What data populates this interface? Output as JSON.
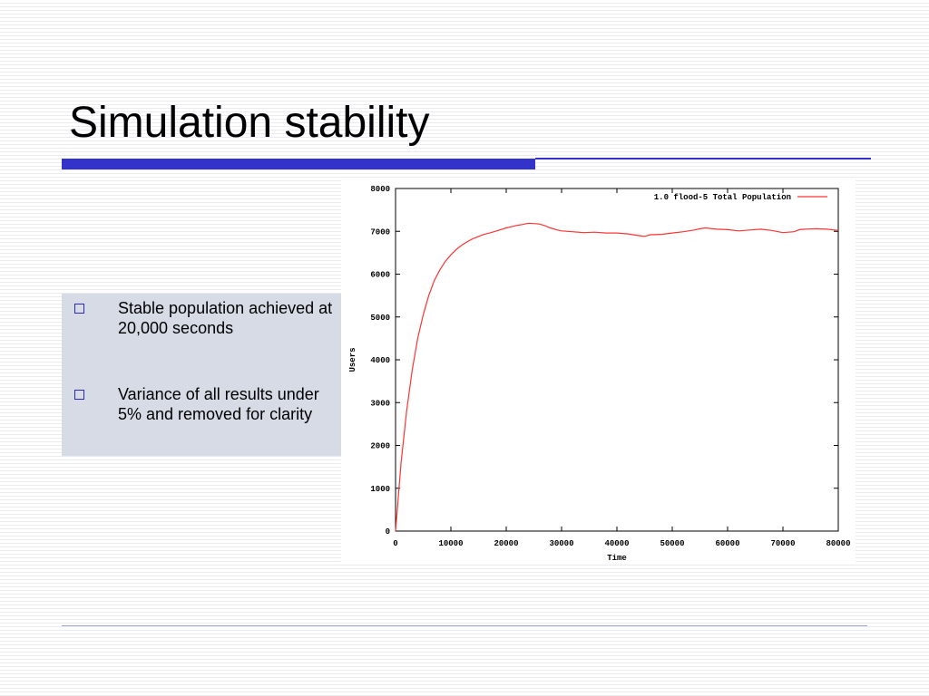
{
  "slide": {
    "title": "Simulation stability",
    "bullets": [
      "Stable population achieved at 20,000 seconds",
      "Variance of all results under 5% and removed for clarity"
    ]
  },
  "colors": {
    "accent": "#3333cc",
    "bullet_panel": "#d6dbe6",
    "series_line": "#ff3333"
  },
  "chart_data": {
    "type": "line",
    "xlabel": "Time",
    "ylabel": "Users",
    "xlim": [
      0,
      80000
    ],
    "ylim": [
      0,
      8000
    ],
    "x_ticks": [
      0,
      10000,
      20000,
      30000,
      40000,
      50000,
      60000,
      70000,
      80000
    ],
    "y_ticks": [
      0,
      1000,
      2000,
      3000,
      4000,
      5000,
      6000,
      7000,
      8000
    ],
    "grid": false,
    "legend_position": "top-right",
    "series": [
      {
        "name": "1.0 flood-5 Total Population",
        "x": [
          0,
          1000,
          2000,
          3000,
          4000,
          5000,
          6000,
          7000,
          8000,
          9000,
          10000,
          11000,
          12000,
          13000,
          14000,
          15000,
          16000,
          17000,
          18000,
          19000,
          20000,
          21000,
          22000,
          23000,
          24000,
          25000,
          26000,
          27000,
          28000,
          29000,
          30000,
          32000,
          34000,
          36000,
          38000,
          40000,
          42000,
          44000,
          45000,
          46000,
          48000,
          50000,
          52000,
          54000,
          55000,
          56000,
          58000,
          60000,
          62000,
          64000,
          66000,
          68000,
          70000,
          72000,
          73000,
          74000,
          76000,
          78000,
          80000
        ],
        "values": [
          0,
          1600,
          2800,
          3750,
          4500,
          5050,
          5500,
          5850,
          6100,
          6300,
          6450,
          6580,
          6680,
          6760,
          6830,
          6880,
          6930,
          6960,
          7000,
          7040,
          7080,
          7110,
          7140,
          7160,
          7190,
          7180,
          7170,
          7130,
          7080,
          7040,
          7010,
          6990,
          6970,
          6980,
          6960,
          6960,
          6940,
          6900,
          6880,
          6920,
          6930,
          6960,
          6990,
          7030,
          7060,
          7080,
          7050,
          7040,
          7010,
          7030,
          7050,
          7020,
          6970,
          6990,
          7040,
          7050,
          7060,
          7050,
          7020
        ]
      }
    ]
  }
}
